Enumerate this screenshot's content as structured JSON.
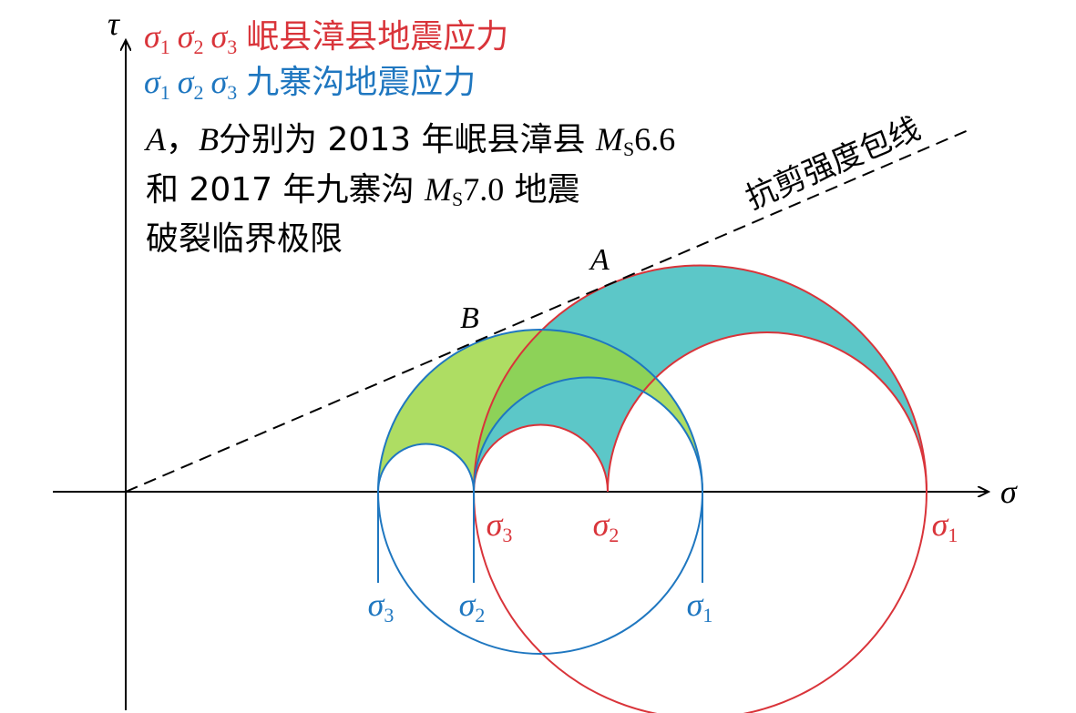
{
  "axes": {
    "y_label": "τ",
    "x_label": "σ"
  },
  "legend": [
    {
      "symbols": [
        "σ",
        "1",
        "σ",
        "2",
        "σ",
        "3"
      ],
      "text": "岷县漳县地震应力"
    },
    {
      "symbols": [
        "σ",
        "1",
        "σ",
        "2",
        "σ",
        "3"
      ],
      "text": "九寨沟地震应力"
    }
  ],
  "note": [
    {
      "a": "A",
      "sep": "，",
      "b": "B",
      "text": "分别为 2013 年岷县漳县 ",
      "m": "M",
      "s": "S",
      "mag": "6.6"
    },
    {
      "text": "和 2017 年九寨沟 ",
      "m": "M",
      "s": "S",
      "mag": "7.0",
      "tail": " 地震"
    },
    {
      "text": "破裂临界极限"
    }
  ],
  "envelope_label": "抗剪强度包线",
  "points": {
    "a": "A",
    "b": "B"
  },
  "red_labels": [
    {
      "s": "σ",
      "n": "3"
    },
    {
      "s": "σ",
      "n": "2"
    },
    {
      "s": "σ",
      "n": "1"
    }
  ],
  "blue_labels": [
    {
      "s": "σ",
      "n": "3"
    },
    {
      "s": "σ",
      "n": "2"
    },
    {
      "s": "σ",
      "n": "1"
    }
  ]
}
